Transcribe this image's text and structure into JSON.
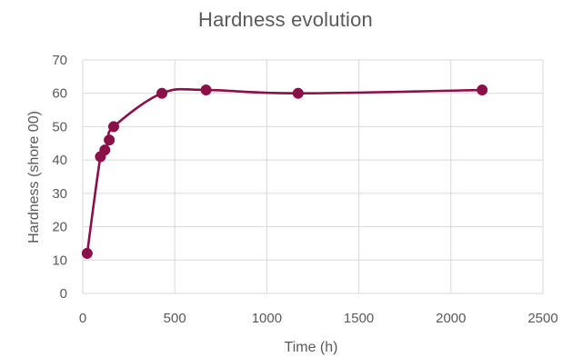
{
  "chart_data": {
    "type": "scatter",
    "title": "Hardness evolution",
    "xlabel": "Time (h)",
    "ylabel": "Hardness (shore 00)",
    "xlim": [
      0,
      2500
    ],
    "ylim": [
      0,
      70
    ],
    "xticks": [
      0,
      500,
      1000,
      1500,
      2000,
      2500
    ],
    "yticks": [
      0,
      10,
      20,
      30,
      40,
      50,
      60,
      70
    ],
    "grid": true,
    "legend": "none",
    "series": [
      {
        "color": "#8b1048",
        "line": "smooth",
        "markers": "circle",
        "points": [
          {
            "x": 24,
            "y": 12
          },
          {
            "x": 96,
            "y": 41
          },
          {
            "x": 120,
            "y": 43
          },
          {
            "x": 144,
            "y": 46
          },
          {
            "x": 168,
            "y": 50
          },
          {
            "x": 430,
            "y": 60
          },
          {
            "x": 670,
            "y": 61
          },
          {
            "x": 1170,
            "y": 60
          },
          {
            "x": 2170,
            "y": 61
          }
        ]
      }
    ]
  }
}
